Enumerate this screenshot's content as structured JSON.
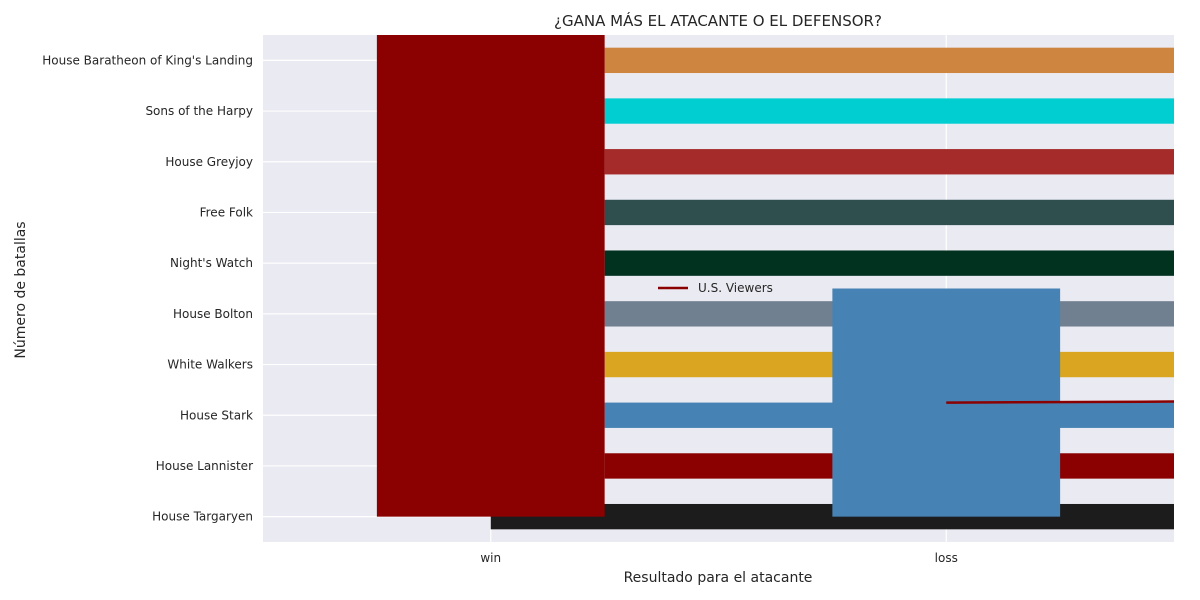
{
  "chart_data": {
    "type": "bar",
    "title": "¿GANA MÁS EL ATACANTE O EL DEFENSOR?",
    "xlabel": "Resultado para el atacante",
    "ylabel": "Número de batallas",
    "x_categories": [
      "win",
      "loss"
    ],
    "y_categories": [
      "House Targaryen",
      "House Lannister",
      "House Stark",
      "White Walkers",
      "House Bolton",
      "Night's Watch",
      "Free Folk",
      "House Greyjoy",
      "Sons of the Harpy",
      "House Baratheon of King's Landing"
    ],
    "horizontal_series": [
      {
        "category": "House Targaryen",
        "start": 0.0,
        "color": "#1c1c1c"
      },
      {
        "category": "House Lannister",
        "start": 0.25,
        "color": "#8b0000"
      },
      {
        "category": "House Stark",
        "start": 0.25,
        "color": "#4682b4"
      },
      {
        "category": "White Walkers",
        "start": 0.25,
        "color": "#daa520"
      },
      {
        "category": "House Bolton",
        "start": 0.25,
        "color": "#708090"
      },
      {
        "category": "Night's Watch",
        "start": 0.25,
        "color": "#013220"
      },
      {
        "category": "Free Folk",
        "start": 0.25,
        "color": "#2f4f4f"
      },
      {
        "category": "House Greyjoy",
        "start": 0.25,
        "color": "#a52a2a"
      },
      {
        "category": "Sons of the Harpy",
        "start": 0.25,
        "color": "#00ced1"
      },
      {
        "category": "House Baratheon of King's Landing",
        "start": 0.25,
        "color": "#cd853f"
      }
    ],
    "vertical_bars": [
      {
        "category": "win",
        "value": 10.3,
        "color": "#8b0000"
      },
      {
        "category": "loss",
        "value": 5.0,
        "color": "#4682b4"
      }
    ],
    "line_series": {
      "name": "U.S. Viewers",
      "color": "#8b0000",
      "points": [
        [
          1.0,
          2.25
        ],
        [
          1.5,
          2.27
        ]
      ]
    },
    "x_range": [
      -0.5,
      1.5
    ],
    "y_range": [
      -0.5,
      9.5
    ],
    "grid": true,
    "legend": {
      "placement": "center",
      "entries": [
        "U.S. Viewers"
      ]
    }
  }
}
